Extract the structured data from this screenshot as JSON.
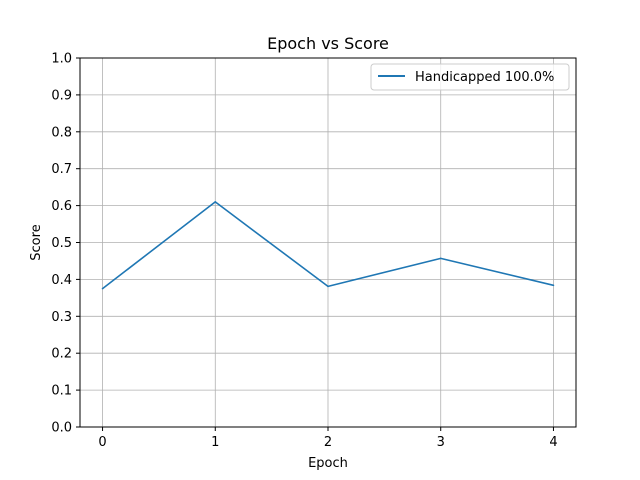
{
  "chart_data": {
    "type": "line",
    "title": "Epoch vs Score",
    "xlabel": "Epoch",
    "ylabel": "Score",
    "x": [
      0,
      1,
      2,
      3,
      4
    ],
    "xticks": [
      "0",
      "1",
      "2",
      "3",
      "4"
    ],
    "yticks": [
      "0.0",
      "0.1",
      "0.2",
      "0.3",
      "0.4",
      "0.5",
      "0.6",
      "0.7",
      "0.8",
      "0.9",
      "1.0"
    ],
    "xlim": [
      -0.2,
      4.2
    ],
    "ylim": [
      0,
      1
    ],
    "grid": true,
    "legend_position": "top-right",
    "series": [
      {
        "name": "Handicapped 100.0%",
        "color": "#1f77b4",
        "values": [
          0.375,
          0.61,
          0.381,
          0.457,
          0.384
        ]
      }
    ]
  }
}
